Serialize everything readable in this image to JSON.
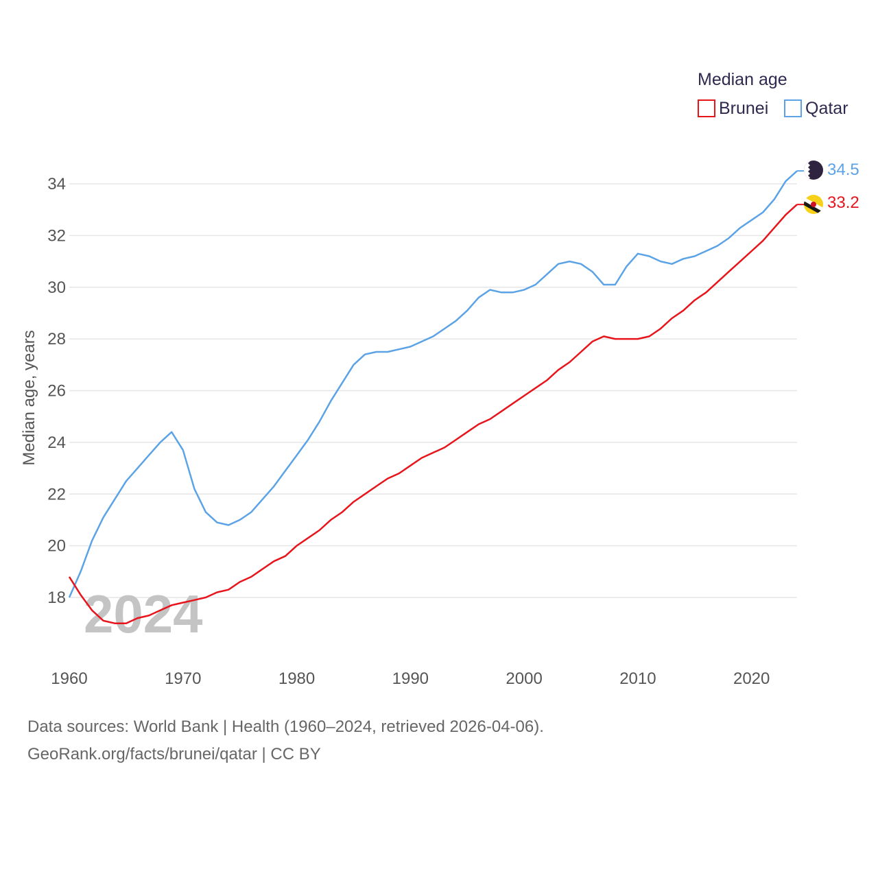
{
  "chart_data": {
    "type": "line",
    "title": "",
    "xlabel": "",
    "ylabel": "Median age, years",
    "xlim": [
      1960,
      2024
    ],
    "ylim": [
      16.2,
      35
    ],
    "x_ticks": [
      1960,
      1970,
      1980,
      1990,
      2000,
      2010,
      2020
    ],
    "y_ticks": [
      18,
      20,
      22,
      24,
      26,
      28,
      30,
      32,
      34
    ],
    "legend": {
      "title": "Median age",
      "position": "top-right"
    },
    "watermark_year": "2024",
    "x": [
      1960,
      1961,
      1962,
      1963,
      1964,
      1965,
      1966,
      1967,
      1968,
      1969,
      1970,
      1971,
      1972,
      1973,
      1974,
      1975,
      1976,
      1977,
      1978,
      1979,
      1980,
      1981,
      1982,
      1983,
      1984,
      1985,
      1986,
      1987,
      1988,
      1989,
      1990,
      1991,
      1992,
      1993,
      1994,
      1995,
      1996,
      1997,
      1998,
      1999,
      2000,
      2001,
      2002,
      2003,
      2004,
      2005,
      2006,
      2007,
      2008,
      2009,
      2010,
      2011,
      2012,
      2013,
      2014,
      2015,
      2016,
      2017,
      2018,
      2019,
      2020,
      2021,
      2022,
      2023,
      2024
    ],
    "series": [
      {
        "name": "Brunei",
        "color": "#e8141b",
        "end_label": "33.2",
        "values": [
          18.8,
          18.1,
          17.5,
          17.1,
          17.0,
          17.0,
          17.2,
          17.3,
          17.5,
          17.7,
          17.8,
          17.9,
          18.0,
          18.2,
          18.3,
          18.6,
          18.8,
          19.1,
          19.4,
          19.6,
          20.0,
          20.3,
          20.6,
          21.0,
          21.3,
          21.7,
          22.0,
          22.3,
          22.6,
          22.8,
          23.1,
          23.4,
          23.6,
          23.8,
          24.1,
          24.4,
          24.7,
          24.9,
          25.2,
          25.5,
          25.8,
          26.1,
          26.4,
          26.8,
          27.1,
          27.5,
          27.9,
          28.1,
          28.0,
          28.0,
          28.0,
          28.1,
          28.4,
          28.8,
          29.1,
          29.5,
          29.8,
          30.2,
          30.6,
          31.0,
          31.4,
          31.8,
          32.3,
          32.8,
          33.2
        ]
      },
      {
        "name": "Qatar",
        "color": "#5ba3e6",
        "end_label": "34.5",
        "values": [
          18.0,
          19.0,
          20.2,
          21.1,
          21.8,
          22.5,
          23.0,
          23.5,
          24.0,
          24.4,
          23.7,
          22.2,
          21.3,
          20.9,
          20.8,
          21.0,
          21.3,
          21.8,
          22.3,
          22.9,
          23.5,
          24.1,
          24.8,
          25.6,
          26.3,
          27.0,
          27.4,
          27.5,
          27.5,
          27.6,
          27.7,
          27.9,
          28.1,
          28.4,
          28.7,
          29.1,
          29.6,
          29.9,
          29.8,
          29.8,
          29.9,
          30.1,
          30.5,
          30.9,
          31.0,
          30.9,
          30.6,
          30.1,
          30.1,
          30.8,
          31.3,
          31.2,
          31.0,
          30.9,
          31.1,
          31.2,
          31.4,
          31.6,
          31.9,
          32.3,
          32.6,
          32.9,
          33.4,
          34.1,
          34.5
        ]
      }
    ]
  },
  "footer": {
    "line1": "Data sources: World Bank | Health (1960–2024, retrieved 2026-04-06).",
    "line2": "GeoRank.org/facts/brunei/qatar | CC BY"
  },
  "icons": {
    "qatar_flag": "qatar-flag-icon",
    "brunei_flag": "brunei-flag-icon"
  }
}
